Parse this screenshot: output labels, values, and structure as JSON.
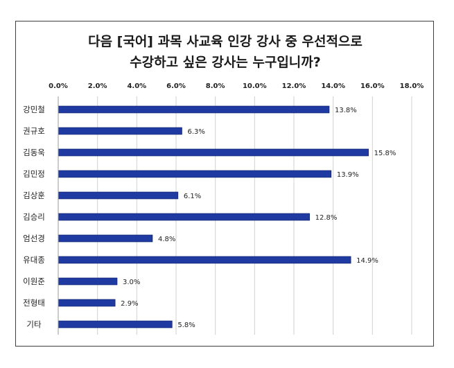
{
  "chart_data": {
    "type": "bar",
    "orientation": "horizontal",
    "title_lines": [
      "다음 [국어] 과목 사교육 인강 강사 중 우선적으로",
      "수강하고 싶은 강사는 누구입니까?"
    ],
    "categories": [
      "강민철",
      "권규호",
      "김동욱",
      "김민정",
      "김상훈",
      "김승리",
      "엄선경",
      "유대종",
      "이원준",
      "전형태",
      "기타"
    ],
    "values": [
      13.8,
      6.3,
      15.8,
      13.9,
      6.1,
      12.8,
      4.8,
      14.9,
      3.0,
      2.9,
      5.8
    ],
    "value_labels": [
      "13.8%",
      "6.3%",
      "15.8%",
      "13.9%",
      "6.1%",
      "12.8%",
      "4.8%",
      "14.9%",
      "3.0%",
      "2.9%",
      "5.8%"
    ],
    "xticks": [
      "0.0%",
      "2.0%",
      "4.0%",
      "6.0%",
      "8.0%",
      "10.0%",
      "12.0%",
      "14.0%",
      "16.0%",
      "18.0%"
    ],
    "xlim": [
      0,
      18
    ],
    "axis_position": "top",
    "grid": true,
    "legend": "none",
    "bar_color": "#1f3aa0"
  }
}
